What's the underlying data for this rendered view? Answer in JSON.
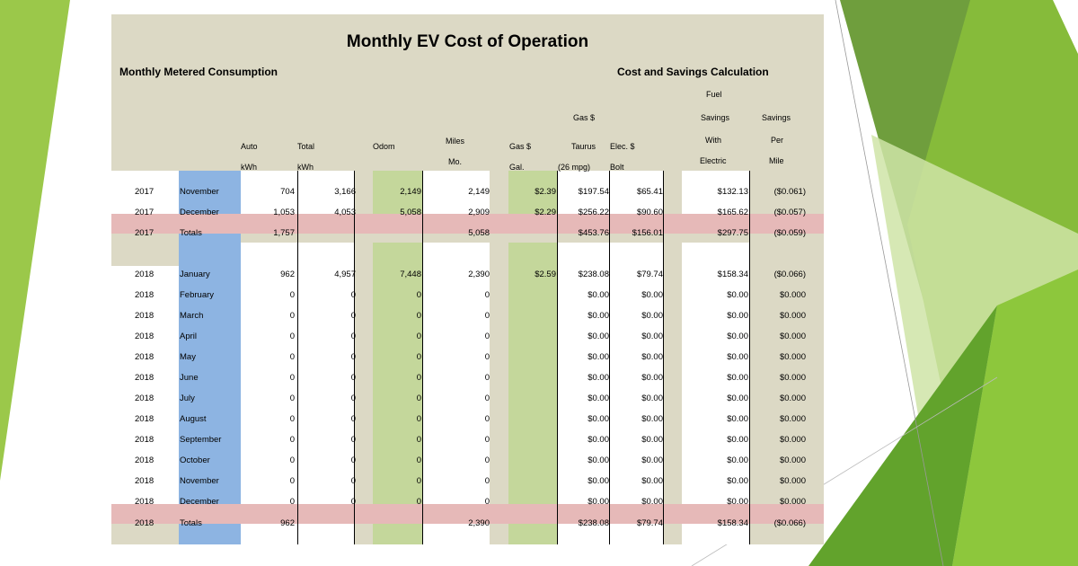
{
  "title": "Monthly EV Cost of Operation",
  "sections": {
    "left": "Monthly Metered Consumption",
    "right": "Cost and Savings Calculation"
  },
  "headers": {
    "auto": [
      "Auto",
      "kWh"
    ],
    "total": [
      "Total",
      "kWh"
    ],
    "odom": [
      "Odom"
    ],
    "miles": [
      "Miles",
      "Mo."
    ],
    "gas_gal": [
      "Gas $",
      "Gal."
    ],
    "gas_taurus": [
      "Gas $",
      "Taurus",
      "(26 mpg)"
    ],
    "elec": [
      "Elec. $",
      "Bolt"
    ],
    "fuel_savings": [
      "Fuel",
      "Savings",
      "With",
      "Electric"
    ],
    "savings_mile": [
      "Savings",
      "Per",
      "Mile"
    ]
  },
  "rows": [
    {
      "year": "2017",
      "month": "November",
      "auto": "704",
      "total": "3,166",
      "odom": "2,149",
      "miles": "2,149",
      "gas": "$2.39",
      "taurus": "$197.54",
      "elec": "$65.41",
      "fuel": "$132.13",
      "mile": "($0.061)"
    },
    {
      "year": "2017",
      "month": "December",
      "auto": "1,053",
      "total": "4,053",
      "odom": "5,058",
      "miles": "2,909",
      "gas": "$2.29",
      "taurus": "$256.22",
      "elec": "$90.60",
      "fuel": "$165.62",
      "mile": "($0.057)"
    },
    {
      "year": "2017",
      "month": "Totals",
      "auto": "1,757",
      "total": "",
      "odom": "",
      "miles": "5,058",
      "gas": "",
      "taurus": "$453.76",
      "elec": "$156.01",
      "fuel": "$297.75",
      "mile": "($0.059)",
      "total_row": true
    },
    {
      "year": "2018",
      "month": "January",
      "auto": "962",
      "total": "4,957",
      "odom": "7,448",
      "miles": "2,390",
      "gas": "$2.59",
      "taurus": "$238.08",
      "elec": "$79.74",
      "fuel": "$158.34",
      "mile": "($0.066)"
    },
    {
      "year": "2018",
      "month": "February",
      "auto": "0",
      "total": "0",
      "odom": "0",
      "miles": "0",
      "gas": "",
      "taurus": "$0.00",
      "elec": "$0.00",
      "fuel": "$0.00",
      "mile": "$0.000"
    },
    {
      "year": "2018",
      "month": "March",
      "auto": "0",
      "total": "0",
      "odom": "0",
      "miles": "0",
      "gas": "",
      "taurus": "$0.00",
      "elec": "$0.00",
      "fuel": "$0.00",
      "mile": "$0.000"
    },
    {
      "year": "2018",
      "month": "April",
      "auto": "0",
      "total": "0",
      "odom": "0",
      "miles": "0",
      "gas": "",
      "taurus": "$0.00",
      "elec": "$0.00",
      "fuel": "$0.00",
      "mile": "$0.000"
    },
    {
      "year": "2018",
      "month": "May",
      "auto": "0",
      "total": "0",
      "odom": "0",
      "miles": "0",
      "gas": "",
      "taurus": "$0.00",
      "elec": "$0.00",
      "fuel": "$0.00",
      "mile": "$0.000"
    },
    {
      "year": "2018",
      "month": "June",
      "auto": "0",
      "total": "0",
      "odom": "0",
      "miles": "0",
      "gas": "",
      "taurus": "$0.00",
      "elec": "$0.00",
      "fuel": "$0.00",
      "mile": "$0.000"
    },
    {
      "year": "2018",
      "month": "July",
      "auto": "0",
      "total": "0",
      "odom": "0",
      "miles": "0",
      "gas": "",
      "taurus": "$0.00",
      "elec": "$0.00",
      "fuel": "$0.00",
      "mile": "$0.000"
    },
    {
      "year": "2018",
      "month": "August",
      "auto": "0",
      "total": "0",
      "odom": "0",
      "miles": "0",
      "gas": "",
      "taurus": "$0.00",
      "elec": "$0.00",
      "fuel": "$0.00",
      "mile": "$0.000"
    },
    {
      "year": "2018",
      "month": "September",
      "auto": "0",
      "total": "0",
      "odom": "0",
      "miles": "0",
      "gas": "",
      "taurus": "$0.00",
      "elec": "$0.00",
      "fuel": "$0.00",
      "mile": "$0.000"
    },
    {
      "year": "2018",
      "month": "October",
      "auto": "0",
      "total": "0",
      "odom": "0",
      "miles": "0",
      "gas": "",
      "taurus": "$0.00",
      "elec": "$0.00",
      "fuel": "$0.00",
      "mile": "$0.000"
    },
    {
      "year": "2018",
      "month": "November",
      "auto": "0",
      "total": "0",
      "odom": "0",
      "miles": "0",
      "gas": "",
      "taurus": "$0.00",
      "elec": "$0.00",
      "fuel": "$0.00",
      "mile": "$0.000"
    },
    {
      "year": "2018",
      "month": "December",
      "auto": "0",
      "total": "0",
      "odom": "0",
      "miles": "0",
      "gas": "",
      "taurus": "$0.00",
      "elec": "$0.00",
      "fuel": "$0.00",
      "mile": "$0.000"
    },
    {
      "year": "2018",
      "month": "Totals",
      "auto": "962",
      "total": "",
      "odom": "",
      "miles": "2,390",
      "gas": "",
      "taurus": "$238.08",
      "elec": "$79.74",
      "fuel": "$158.34",
      "mile": "($0.066)",
      "total_row": true
    }
  ],
  "colors": {
    "panel": "#dcd9c5",
    "month_col": "#8db4e2",
    "odom_col": "#c4d79b",
    "totals_row": "#e6b9b8",
    "deco_green_light": "#a9d15a",
    "deco_green_dark": "#5e9a2c"
  }
}
